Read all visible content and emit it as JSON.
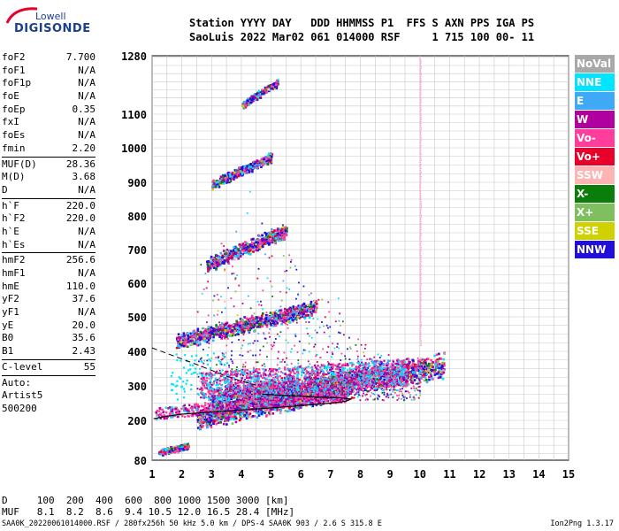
{
  "logo": {
    "top_text": "Lowell",
    "main_text": "DIGISONDE"
  },
  "header": {
    "line1": "Station YYYY DAY   DDD HHMMSS P1  FFS S AXN PPS IGA PS",
    "line2": "SaoLuis 2022 Mar02 061 014000 RSF     1 715 100 00- 11"
  },
  "params": [
    {
      "k": "foF2",
      "v": "7.700"
    },
    {
      "k": "foF1",
      "v": "N/A"
    },
    {
      "k": "foF1p",
      "v": "N/A"
    },
    {
      "k": "foE",
      "v": "N/A"
    },
    {
      "k": "foEp",
      "v": "0.35"
    },
    {
      "k": "fxI",
      "v": "N/A"
    },
    {
      "k": "foEs",
      "v": "N/A"
    },
    {
      "k": "fmin",
      "v": "2.20"
    },
    {
      "sep": true
    },
    {
      "k": "MUF(D)",
      "v": "28.36"
    },
    {
      "k": "M(D)",
      "v": "3.68"
    },
    {
      "k": "D",
      "v": "N/A"
    },
    {
      "sep": true
    },
    {
      "k": "h`F",
      "v": "220.0"
    },
    {
      "k": "h`F2",
      "v": "220.0"
    },
    {
      "k": "h`E",
      "v": "N/A"
    },
    {
      "k": "h`Es",
      "v": "N/A"
    },
    {
      "sep": true
    },
    {
      "k": "hmF2",
      "v": "256.6"
    },
    {
      "k": "hmF1",
      "v": "N/A"
    },
    {
      "k": "hmE",
      "v": "110.0"
    },
    {
      "k": "yF2",
      "v": "37.6"
    },
    {
      "k": "yF1",
      "v": "N/A"
    },
    {
      "k": "yE",
      "v": "20.0"
    },
    {
      "k": "B0",
      "v": "35.6"
    },
    {
      "k": "B1",
      "v": "2.43"
    },
    {
      "sep": true
    },
    {
      "k": "C-level",
      "v": "55"
    },
    {
      "sep": true
    },
    {
      "k": "Auto:",
      "v": ""
    },
    {
      "k": "Artist5",
      "v": ""
    },
    {
      "k": "500200",
      "v": ""
    }
  ],
  "legend": [
    {
      "label": "NoVal",
      "color": "#a8a8a8"
    },
    {
      "label": "NNE",
      "color": "#00e5ff"
    },
    {
      "label": "E",
      "color": "#3fa9f5"
    },
    {
      "label": "W",
      "color": "#b0009f"
    },
    {
      "label": "Vo-",
      "color": "#ff3d9a"
    },
    {
      "label": "Vo+",
      "color": "#e8002a"
    },
    {
      "label": "SSW",
      "color": "#ffb4b4"
    },
    {
      "label": "X-",
      "color": "#0a7d0a"
    },
    {
      "label": "X+",
      "color": "#7fbf5f"
    },
    {
      "label": "SSE",
      "color": "#cfd200"
    },
    {
      "label": "NNW",
      "color": "#2010d8"
    }
  ],
  "d_muf": {
    "line1": "D     100  200  400  600  800 1000 1500 3000 [km]",
    "line2": "MUF   8.1  8.2  8.6  9.4 10.5 12.0 16.5 28.4 [MHz]"
  },
  "footer": {
    "left": "SAA0K_20220061014000.RSF / 280fx256h 50 kHz 5.0 km / DPS-4 SAA0K 903 / 2.6 S 315.8 E",
    "right": "Ion2Png 1.3.17"
  },
  "chart_data": {
    "type": "scatter",
    "xlim": [
      1,
      15
    ],
    "ylim": [
      80,
      1280
    ],
    "x_ticks": [
      1,
      2,
      3,
      4,
      5,
      6,
      7,
      8,
      9,
      10,
      11,
      12,
      13,
      14,
      15
    ],
    "y_ticks": [
      80,
      200,
      300,
      400,
      500,
      600,
      700,
      800,
      900,
      1000,
      1100,
      1280
    ],
    "grid": true,
    "legend_position": "right",
    "profile_curve": [
      [
        1.05,
        205
      ],
      [
        1.5,
        212
      ],
      [
        2,
        218
      ],
      [
        3,
        224
      ],
      [
        4,
        230
      ],
      [
        5,
        236
      ],
      [
        6,
        243
      ],
      [
        7,
        250
      ],
      [
        7.5,
        255
      ],
      [
        7.7,
        262
      ],
      [
        7.2,
        266
      ],
      [
        6.5,
        268
      ],
      [
        5.5,
        272
      ],
      [
        4.7,
        276
      ]
    ],
    "dashed_curve": [
      [
        1.0,
        410
      ],
      [
        1.5,
        394
      ],
      [
        2,
        378
      ],
      [
        2.5,
        362
      ],
      [
        3,
        345
      ],
      [
        3.5,
        328
      ],
      [
        4,
        314
      ],
      [
        4.5,
        302
      ]
    ],
    "traces": [
      {
        "name": "F2 O-trace",
        "x0": 2.5,
        "x1": 7.7,
        "y0": 205,
        "y1": 300,
        "spread": 25
      },
      {
        "name": "F2 X-trace",
        "x0": 3.0,
        "x1": 10.8,
        "y0": 255,
        "y1": 360,
        "spread": 30
      },
      {
        "name": "2nd hop",
        "x0": 1.8,
        "x1": 6.5,
        "y0": 430,
        "y1": 530,
        "spread": 18
      },
      {
        "name": "3rd hop",
        "x0": 2.8,
        "x1": 5.5,
        "y0": 655,
        "y1": 760,
        "spread": 18
      },
      {
        "name": "4th hop",
        "x0": 3.0,
        "x1": 5.0,
        "y0": 895,
        "y1": 975,
        "spread": 12
      },
      {
        "name": "5th hop",
        "x0": 4.0,
        "x1": 5.2,
        "y0": 1130,
        "y1": 1200,
        "spread": 10
      },
      {
        "name": "low echoes",
        "x0": 1.2,
        "x1": 2.2,
        "y0": 105,
        "y1": 125,
        "spread": 8
      }
    ]
  }
}
